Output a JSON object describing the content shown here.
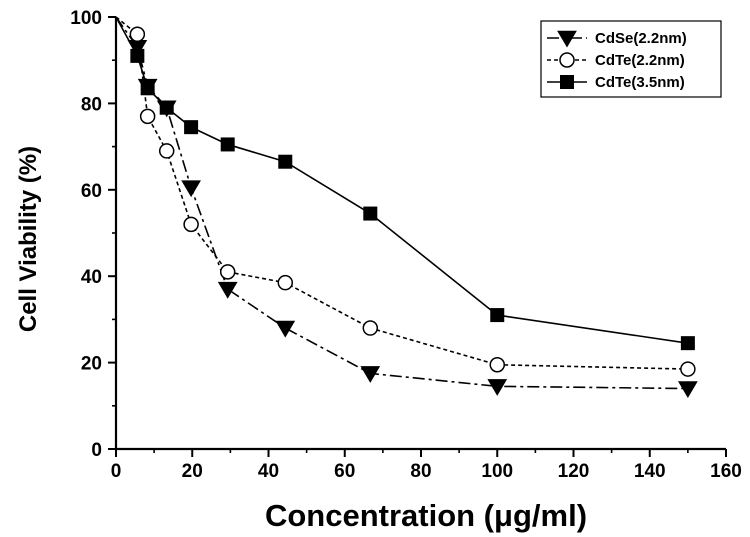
{
  "chart_data": {
    "type": "line",
    "title": "",
    "xlabel": "Concentration (μg/ml)",
    "ylabel": "Cell Viability (%)",
    "xlim": [
      0,
      160
    ],
    "ylim": [
      0,
      100
    ],
    "x_ticks": [
      0,
      20,
      40,
      60,
      80,
      100,
      120,
      140,
      160
    ],
    "y_ticks": [
      0,
      20,
      40,
      60,
      80,
      100
    ],
    "grid": false,
    "legend_position": "top-right",
    "series": [
      {
        "name": "CdSe(2.2nm)",
        "marker": "triangle-down-filled",
        "line_style": "dash-dot",
        "x": [
          0,
          5.6,
          8.3,
          13.3,
          19.7,
          29.3,
          44.4,
          66.7,
          100,
          150
        ],
        "y": [
          100,
          93,
          84,
          79,
          60.5,
          37,
          28,
          17.5,
          14.5,
          14
        ]
      },
      {
        "name": "CdTe(2.2nm)",
        "marker": "circle-open",
        "line_style": "dotted",
        "x": [
          0,
          5.6,
          8.3,
          13.3,
          19.7,
          29.3,
          44.4,
          66.7,
          100,
          150
        ],
        "y": [
          100,
          96,
          77,
          69,
          52,
          41,
          38.5,
          28,
          19.5,
          18.5
        ]
      },
      {
        "name": "CdTe(3.5nm)",
        "marker": "square-filled",
        "line_style": "solid",
        "x": [
          0,
          5.6,
          8.3,
          13.3,
          19.7,
          29.3,
          44.4,
          66.7,
          100,
          150
        ],
        "y": [
          100,
          91,
          83.5,
          79,
          74.5,
          70.5,
          66.5,
          54.5,
          31,
          24.5
        ]
      }
    ]
  }
}
